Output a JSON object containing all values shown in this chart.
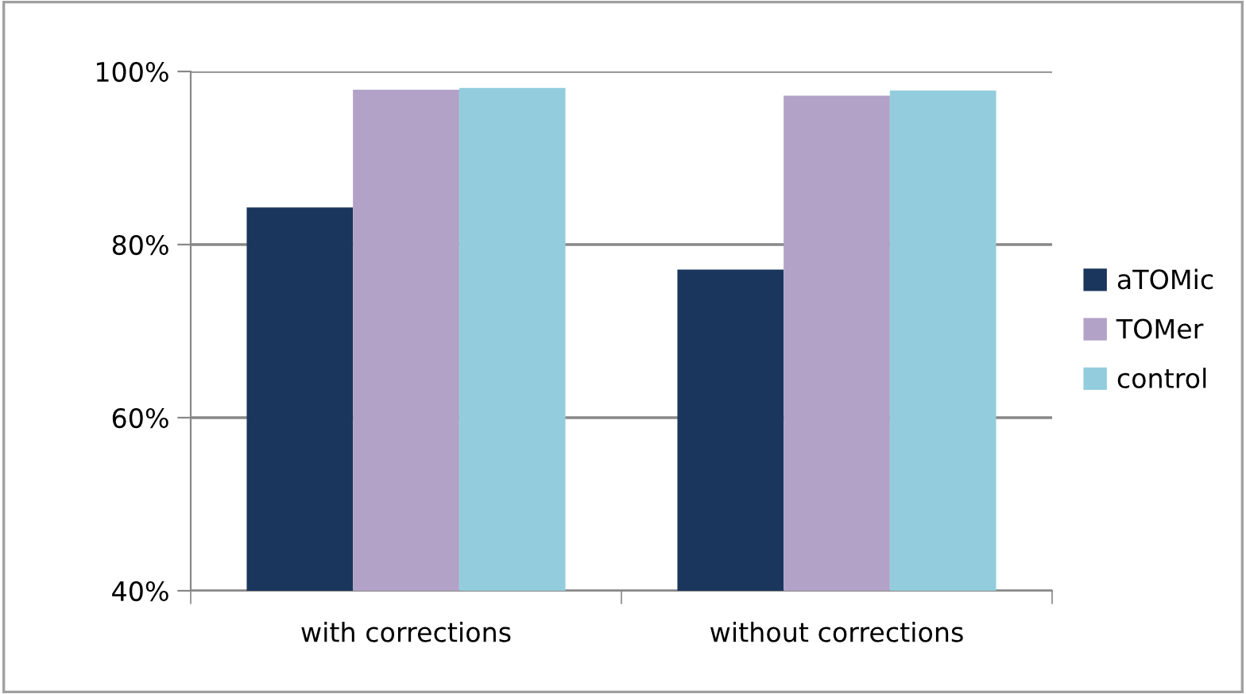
{
  "chart_data": {
    "type": "bar",
    "categories": [
      "with corrections",
      "without corrections"
    ],
    "series": [
      {
        "name": "aTOMic",
        "color": "#1b365d",
        "values": [
          84.3,
          77.1
        ]
      },
      {
        "name": "TOMer",
        "color": "#b2a2c7",
        "values": [
          97.9,
          97.2
        ]
      },
      {
        "name": "control",
        "color": "#93cddd",
        "values": [
          98.1,
          97.8
        ]
      }
    ],
    "ylim": [
      40,
      100
    ],
    "yticks": [
      {
        "value": 40,
        "label": "40%"
      },
      {
        "value": 60,
        "label": "60%"
      },
      {
        "value": 80,
        "label": "80%"
      },
      {
        "value": 100,
        "label": "100%"
      }
    ],
    "grid": "y",
    "legend": "right"
  }
}
